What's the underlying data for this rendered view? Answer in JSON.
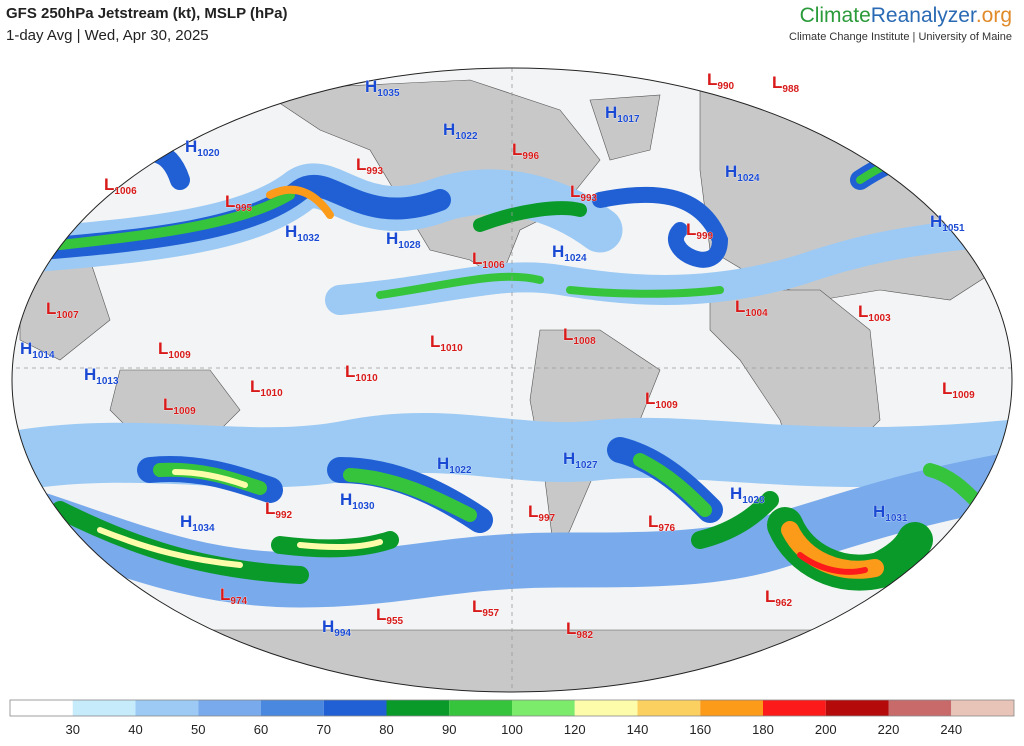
{
  "header": {
    "title": "GFS 250hPa Jetstream (kt), MSLP (hPa)",
    "subtitle": "1-day Avg | Wed, Apr 30, 2025",
    "brand_a": "Climate",
    "brand_b": "Reanalyzer",
    "brand_c": ".org",
    "institute": "Climate Change Institute | University of Maine"
  },
  "pressure_centers": [
    {
      "letter": "H",
      "value": "1035"
    },
    {
      "letter": "L",
      "value": "990"
    },
    {
      "letter": "L",
      "value": "988"
    },
    {
      "letter": "H",
      "value": "1020"
    },
    {
      "letter": "H",
      "value": "1022"
    },
    {
      "letter": "L",
      "value": "996"
    },
    {
      "letter": "H",
      "value": "1017"
    },
    {
      "letter": "L",
      "value": "993"
    },
    {
      "letter": "L",
      "value": "1006"
    },
    {
      "letter": "L",
      "value": "995"
    },
    {
      "letter": "L",
      "value": "993"
    },
    {
      "letter": "H",
      "value": "1024"
    },
    {
      "letter": "H",
      "value": "1032"
    },
    {
      "letter": "H",
      "value": "1028"
    },
    {
      "letter": "L",
      "value": "999"
    },
    {
      "letter": "H",
      "value": "1051"
    },
    {
      "letter": "L",
      "value": "1006"
    },
    {
      "letter": "H",
      "value": "1024"
    },
    {
      "letter": "L",
      "value": "1007"
    },
    {
      "letter": "L",
      "value": "1004"
    },
    {
      "letter": "L",
      "value": "1003"
    },
    {
      "letter": "H",
      "value": "1014"
    },
    {
      "letter": "L",
      "value": "1009"
    },
    {
      "letter": "L",
      "value": "1010"
    },
    {
      "letter": "L",
      "value": "1008"
    },
    {
      "letter": "H",
      "value": "1013"
    },
    {
      "letter": "L",
      "value": "1010"
    },
    {
      "letter": "L",
      "value": "1010"
    },
    {
      "letter": "L",
      "value": "1009"
    },
    {
      "letter": "L",
      "value": "1009"
    },
    {
      "letter": "L",
      "value": "1009"
    },
    {
      "letter": "H",
      "value": "1022"
    },
    {
      "letter": "H",
      "value": "1027"
    },
    {
      "letter": "H",
      "value": "1030"
    },
    {
      "letter": "H",
      "value": "1028"
    },
    {
      "letter": "L",
      "value": "992"
    },
    {
      "letter": "L",
      "value": "997"
    },
    {
      "letter": "L",
      "value": "976"
    },
    {
      "letter": "H",
      "value": "1031"
    },
    {
      "letter": "H",
      "value": "1034"
    },
    {
      "letter": "L",
      "value": "974"
    },
    {
      "letter": "L",
      "value": "962"
    },
    {
      "letter": "L",
      "value": "955"
    },
    {
      "letter": "L",
      "value": "957"
    },
    {
      "letter": "L",
      "value": "982"
    },
    {
      "letter": "H",
      "value": "994"
    }
  ],
  "colorbar": {
    "labels": [
      "30",
      "40",
      "50",
      "60",
      "70",
      "80",
      "90",
      "100",
      "120",
      "140",
      "160",
      "180",
      "200",
      "220",
      "240"
    ],
    "colors": [
      "#ffffff",
      "#c6ecfc",
      "#9ccaf4",
      "#78aaec",
      "#4a88e0",
      "#2060d4",
      "#0a9a2a",
      "#36c43c",
      "#7cea6a",
      "#fcfcaa",
      "#fcd060",
      "#fc9a1a",
      "#fc1a1a",
      "#b40a0a",
      "#c86a6a",
      "#e8c4b8"
    ]
  }
}
